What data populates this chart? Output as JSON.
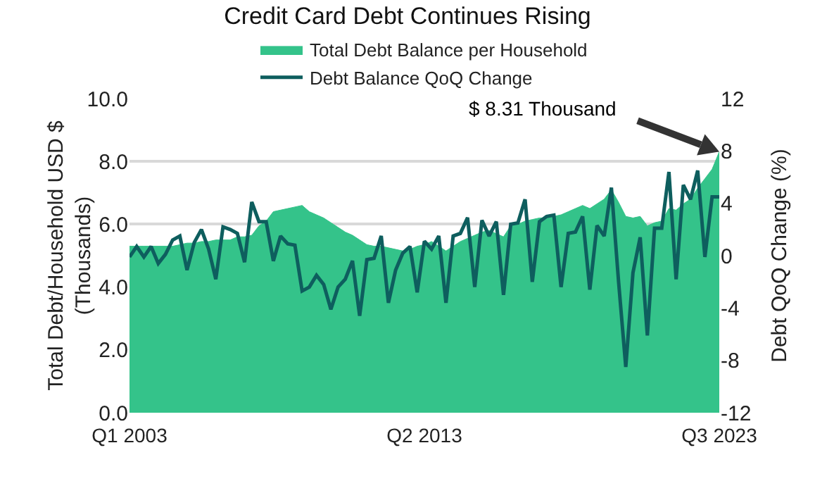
{
  "chart_data": {
    "type": "area",
    "title": "Credit Card Debt Continues Rising",
    "ylabel": "Total Debt/Household USD $\n(Thousands)",
    "y2label": "Debt QoQ Change (%)",
    "categories": [
      "Q1 2003",
      null,
      null,
      null,
      null,
      null,
      null,
      null,
      null,
      null,
      null,
      null,
      null,
      null,
      null,
      null,
      null,
      null,
      null,
      null,
      null,
      null,
      null,
      null,
      null,
      null,
      null,
      null,
      null,
      null,
      null,
      null,
      null,
      null,
      null,
      null,
      null,
      null,
      null,
      null,
      null,
      "Q2 2013",
      null,
      null,
      null,
      null,
      null,
      null,
      null,
      null,
      null,
      null,
      null,
      null,
      null,
      null,
      null,
      null,
      null,
      null,
      null,
      null,
      null,
      null,
      null,
      null,
      null,
      null,
      null,
      null,
      null,
      null,
      null,
      null,
      null,
      null,
      null,
      null,
      null,
      null,
      null,
      null,
      "Q3 2023"
    ],
    "series": [
      {
        "name": "Total Debt Balance per Household",
        "color": "#34c38a",
        "values": [
          5.3,
          5.3,
          5.3,
          5.3,
          5.3,
          5.3,
          5.3,
          5.35,
          5.4,
          5.4,
          5.45,
          5.45,
          5.5,
          5.5,
          5.5,
          5.6,
          5.6,
          5.65,
          5.95,
          6.1,
          6.4,
          6.45,
          6.5,
          6.55,
          6.6,
          6.4,
          6.3,
          6.2,
          6.05,
          5.9,
          5.75,
          5.65,
          5.5,
          5.35,
          5.3,
          5.3,
          5.25,
          5.2,
          5.15,
          5.2,
          5.3,
          5.35,
          5.45,
          5.3,
          5.15,
          5.3,
          5.45,
          5.55,
          5.65,
          5.75,
          5.8,
          5.7,
          5.6,
          5.95,
          6.0,
          6.1,
          6.15,
          6.2,
          6.2,
          6.25,
          6.3,
          6.4,
          6.5,
          6.6,
          6.5,
          6.65,
          6.8,
          7.1,
          6.7,
          6.25,
          6.2,
          6.25,
          5.95,
          6.05,
          6.1,
          6.5,
          6.45,
          6.65,
          6.8,
          7.15,
          7.45,
          7.75,
          8.31
        ]
      },
      {
        "name": "Debt Balance QoQ Change",
        "type": "line",
        "axis": "y2",
        "color": "#0e5e5e",
        "values": [
          -0.1,
          0.7,
          -0.1,
          0.7,
          -0.6,
          0.1,
          1.2,
          1.5,
          -1.1,
          1.0,
          2.0,
          0.5,
          -1.8,
          2.2,
          2.0,
          1.7,
          -0.5,
          4.1,
          2.6,
          2.6,
          -0.4,
          1.5,
          0.9,
          0.8,
          -2.7,
          -2.4,
          -1.5,
          -2.2,
          -4.1,
          -2.4,
          -1.8,
          -0.4,
          -4.6,
          -0.3,
          -0.2,
          1.5,
          -3.6,
          -1.1,
          0.2,
          0.7,
          -2.8,
          1.1,
          0.5,
          1.5,
          -3.6,
          1.5,
          1.7,
          2.9,
          -2.4,
          2.7,
          1.5,
          2.6,
          -3.0,
          2.4,
          2.5,
          4.3,
          -2.0,
          2.6,
          3.0,
          3.1,
          -2.4,
          1.7,
          1.8,
          3.0,
          -2.6,
          2.3,
          1.5,
          5.2,
          -2.0,
          -8.5,
          -1.3,
          1.4,
          -6.1,
          2.1,
          2.1,
          6.4,
          -1.8,
          5.4,
          4.3,
          6.5,
          -0.1,
          4.5,
          4.5
        ]
      }
    ],
    "ylim": [
      0,
      10
    ],
    "yticks": [
      {
        "value": 0,
        "label": "0.0"
      },
      {
        "value": 2,
        "label": "2.0"
      },
      {
        "value": 4,
        "label": "4.0"
      },
      {
        "value": 6,
        "label": "6.0"
      },
      {
        "value": 8,
        "label": "8.0"
      },
      {
        "value": 10,
        "label": "10.0"
      }
    ],
    "y2lim": [
      -12,
      12
    ],
    "y2ticks": [
      -12,
      -8,
      -4,
      0,
      4,
      8,
      12
    ],
    "grid": "y",
    "legend": "top",
    "marker": "none",
    "line_style": "solid",
    "annotations": [
      "$ 8.31 Thousand"
    ]
  }
}
